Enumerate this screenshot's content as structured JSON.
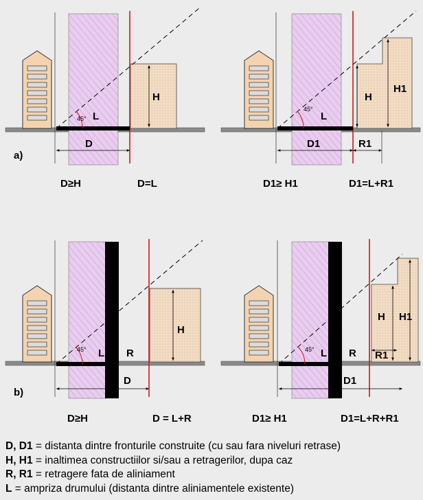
{
  "panel_labels": {
    "a": "a)",
    "b": "b)"
  },
  "angle_label": "45°",
  "diagrams": [
    {
      "id": "a-left",
      "labels": {
        "h": "H",
        "l": "L",
        "d": "D"
      },
      "captions": [
        "D≥H",
        "D=L"
      ]
    },
    {
      "id": "a-right",
      "labels": {
        "h": "H",
        "h1": "H1",
        "l": "L",
        "d": "D1",
        "r": "R1"
      },
      "captions": [
        "D1≥ H1",
        "D1=L+R1"
      ]
    },
    {
      "id": "b-left",
      "labels": {
        "h": "H",
        "l": "L",
        "d": "D",
        "r": "R"
      },
      "captions": [
        "D≥H",
        "D = L+R"
      ]
    },
    {
      "id": "b-right",
      "labels": {
        "h": "H",
        "h1": "H1",
        "l": "L",
        "d": "D1",
        "r": "R",
        "r1": "R1"
      },
      "captions": [
        "D1≥ H1",
        "D1=L+R+R1"
      ]
    }
  ],
  "legend": [
    {
      "term": "D, D1",
      "text": " = distanta dintre fronturile construite (cu sau fara niveluri retrase)"
    },
    {
      "term": "H, H1",
      "text": " = inaltimea constructiilor si/sau a retragerilor, dupa caz"
    },
    {
      "term": "R, R1",
      "text": " = retragere fata de aliniament"
    },
    {
      "term": "L",
      "text": " = ampriza drumului (distanta dintre aliniamentele existente)"
    }
  ],
  "colors": {
    "road_hatch": "#d8a8e0",
    "road_fill": "#e9cdef",
    "building_fill": "#f2dcc4",
    "house_fill": "#f4d3b0",
    "alignment_line": "#e01010",
    "ground": "#8a8a8a",
    "background": "#ececec"
  }
}
